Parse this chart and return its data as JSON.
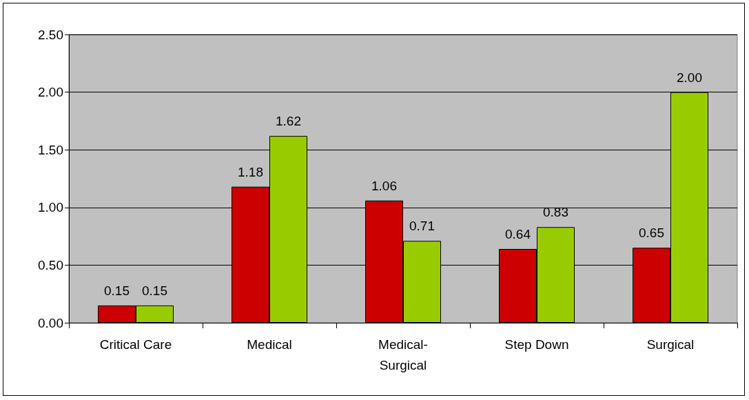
{
  "chart_data": {
    "type": "bar",
    "categories": [
      "Critical Care",
      "Medical",
      "Medical-Surgical",
      "Step Down",
      "Surgical"
    ],
    "series": [
      {
        "color": "#cc0000",
        "values": [
          0.15,
          1.18,
          1.06,
          0.64,
          0.65
        ],
        "value_labels": [
          "0.15",
          "1.18",
          "1.06",
          "0.64",
          "0.65"
        ]
      },
      {
        "color": "#99cc00",
        "values": [
          0.15,
          1.62,
          0.71,
          0.83,
          2.0
        ],
        "value_labels": [
          "0.15",
          "1.62",
          "0.71",
          "0.83",
          "2.00"
        ]
      }
    ],
    "ylim": [
      0,
      2.5
    ],
    "yticks": [
      {
        "value": 0,
        "label": "0.00"
      },
      {
        "value": 0.5,
        "label": "0.50"
      },
      {
        "value": 1,
        "label": "1.00"
      },
      {
        "value": 1.5,
        "label": "1.50"
      },
      {
        "value": 2,
        "label": "2.00"
      },
      {
        "value": 2.5,
        "label": "2.50"
      }
    ],
    "grid": "y"
  }
}
